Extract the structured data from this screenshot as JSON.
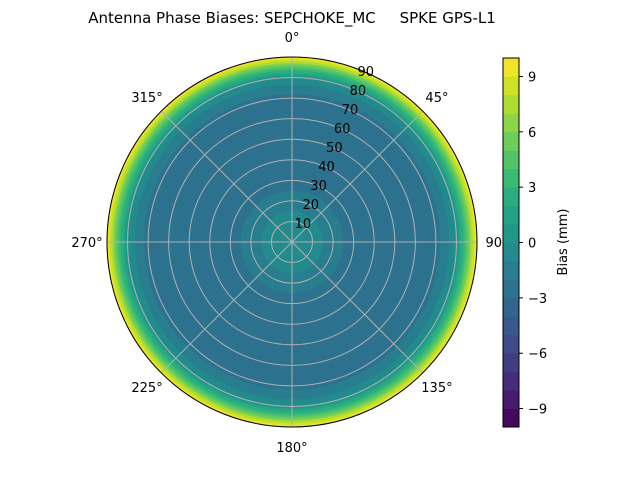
{
  "chart_data": {
    "type": "heatmap",
    "subtype": "polar-contour",
    "title": "Antenna Phase Biases: SEPCHOKE_MC     SPKE GPS-L1",
    "angular_direction": "clockwise",
    "angular_zero": "top",
    "angular_ticks": [
      "0°",
      "45°",
      "90°",
      "135°",
      "180°",
      "225°",
      "270°",
      "315°"
    ],
    "radial_ticks": [
      "10",
      "20",
      "30",
      "40",
      "50",
      "60",
      "70",
      "80",
      "90"
    ],
    "radial_range": [
      0,
      90
    ],
    "grid": true,
    "colormap": "viridis",
    "colorbar": {
      "label": "Bias (mm)",
      "range": [
        -10,
        10
      ],
      "levels_step": 1,
      "ticks": [
        "−9",
        "−6",
        "−3",
        "0",
        "3",
        "6",
        "9"
      ],
      "tick_values": [
        -9,
        -6,
        -3,
        0,
        3,
        6,
        9
      ],
      "placement": "right"
    },
    "radial_profile": {
      "zenith_deg": [
        0,
        10,
        20,
        30,
        40,
        50,
        60,
        70,
        75,
        80,
        85,
        90
      ],
      "bias_mm": [
        0,
        -0.5,
        -1.5,
        -2.5,
        -3,
        -3,
        -3,
        -2.5,
        -1.5,
        0,
        4,
        10
      ]
    }
  }
}
